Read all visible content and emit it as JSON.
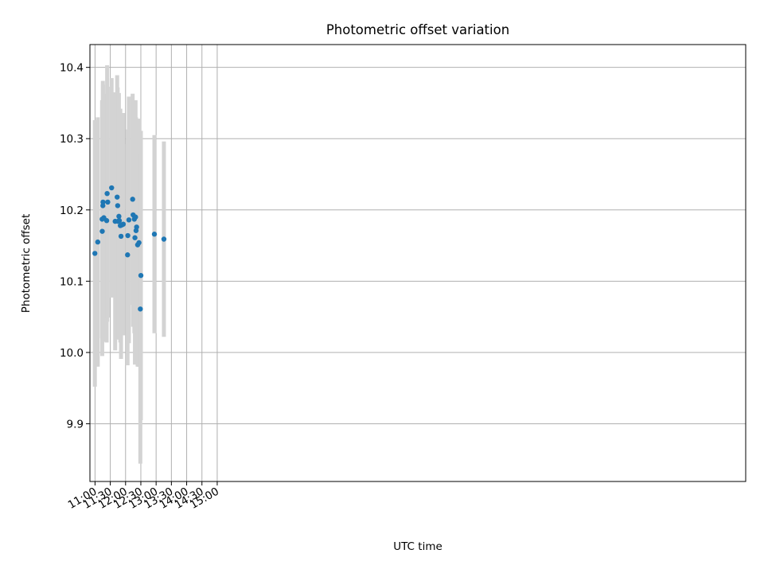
{
  "chart_data": {
    "type": "scatter",
    "title": "Photometric offset variation",
    "xlabel": "UTC time",
    "ylabel": "Photometric offset",
    "grid": true,
    "xlim": [
      650,
      1938
    ],
    "ylim": [
      9.819,
      10.432
    ],
    "x_tick_values": [
      660,
      690,
      720,
      750,
      780,
      810,
      840,
      870,
      900
    ],
    "x_tick_labels": [
      "11:00",
      "11:30",
      "12:00",
      "12:30",
      "13:00",
      "13:30",
      "14:00",
      "14:30",
      "15:00"
    ],
    "y_tick_values": [
      9.9,
      10.0,
      10.1,
      10.2,
      10.3,
      10.4
    ],
    "y_tick_labels": [
      "9.9",
      "10.0",
      "10.1",
      "10.2",
      "10.3",
      "10.4"
    ],
    "colors": {
      "point": "#1f77b4",
      "errorbar": "#d3d3d3",
      "grid": "#b0b0b0",
      "axes": "#000000"
    },
    "points": [
      {
        "t": 659.7,
        "y": 10.139,
        "err": 0.187
      },
      {
        "t": 665.4,
        "y": 10.155,
        "err": 0.175
      },
      {
        "t": 673.9,
        "y": 10.187,
        "err": 0.167
      },
      {
        "t": 674.2,
        "y": 10.17,
        "err": 0.175
      },
      {
        "t": 675.4,
        "y": 10.206,
        "err": 0.175
      },
      {
        "t": 675.7,
        "y": 10.211,
        "err": 0.165
      },
      {
        "t": 677.3,
        "y": 10.189,
        "err": 0.174
      },
      {
        "t": 682.9,
        "y": 10.185,
        "err": 0.171
      },
      {
        "t": 683.8,
        "y": 10.223,
        "err": 0.18
      },
      {
        "t": 685.0,
        "y": 10.211,
        "err": 0.162
      },
      {
        "t": 692.6,
        "y": 10.231,
        "err": 0.154
      },
      {
        "t": 699.6,
        "y": 10.184,
        "err": 0.181
      },
      {
        "t": 703.5,
        "y": 10.218,
        "err": 0.171
      },
      {
        "t": 704.5,
        "y": 10.206,
        "err": 0.166
      },
      {
        "t": 705.3,
        "y": 10.184,
        "err": 0.157
      },
      {
        "t": 706.9,
        "y": 10.191,
        "err": 0.173
      },
      {
        "t": 707.8,
        "y": 10.185,
        "err": 0.157
      },
      {
        "t": 709.7,
        "y": 10.178,
        "err": 0.164
      },
      {
        "t": 711.1,
        "y": 10.163,
        "err": 0.172
      },
      {
        "t": 712.8,
        "y": 10.179,
        "err": 0.152
      },
      {
        "t": 715.4,
        "y": 10.18,
        "err": 0.156
      },
      {
        "t": 723.9,
        "y": 10.137,
        "err": 0.155
      },
      {
        "t": 724.4,
        "y": 10.164,
        "err": 0.149
      },
      {
        "t": 726.5,
        "y": 10.186,
        "err": 0.173
      },
      {
        "t": 733.9,
        "y": 10.215,
        "err": 0.148
      },
      {
        "t": 734.8,
        "y": 10.193,
        "err": 0.157
      },
      {
        "t": 737.2,
        "y": 10.187,
        "err": 0.16
      },
      {
        "t": 738.4,
        "y": 10.161,
        "err": 0.178
      },
      {
        "t": 739.6,
        "y": 10.19,
        "err": 0.164
      },
      {
        "t": 740.6,
        "y": 10.171,
        "err": 0.159
      },
      {
        "t": 741.7,
        "y": 10.176,
        "err": 0.149
      },
      {
        "t": 743.7,
        "y": 10.151,
        "err": 0.171
      },
      {
        "t": 746.3,
        "y": 10.154,
        "err": 0.174
      },
      {
        "t": 749.0,
        "y": 10.061,
        "err": 0.217
      },
      {
        "t": 750.1,
        "y": 10.108,
        "err": 0.203
      },
      {
        "t": 776.6,
        "y": 10.166,
        "err": 0.139
      },
      {
        "t": 795.3,
        "y": 10.159,
        "err": 0.137
      }
    ]
  }
}
